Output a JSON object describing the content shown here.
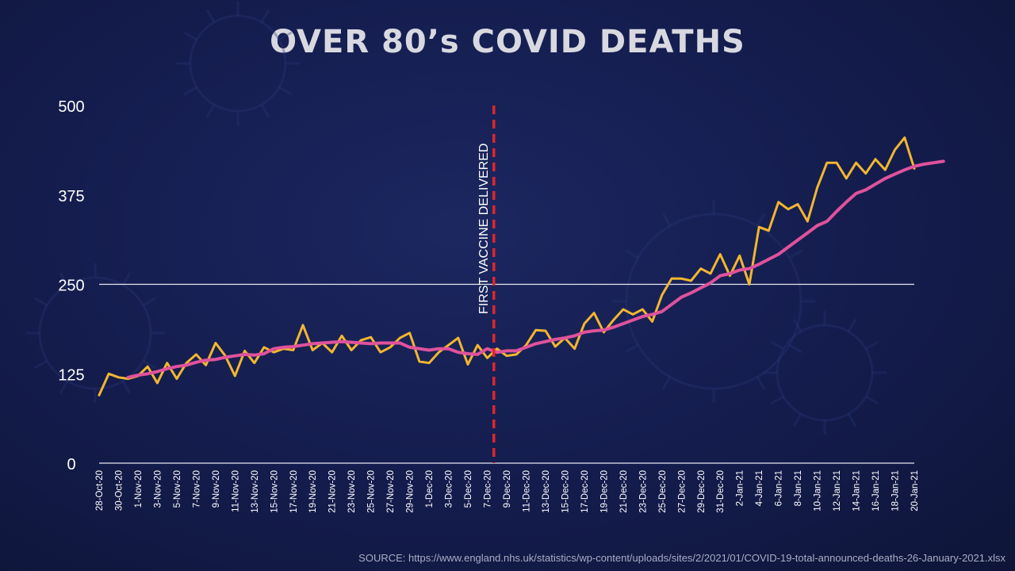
{
  "chart_data": {
    "type": "line",
    "title": "OVER 80’s COVID DEATHS",
    "source": "SOURCE: https://www.england.nhs.uk/statistics/wp-content/uploads/sites/2/2021/01/COVID-19-total-announced-deaths-26-January-2021.xlsx",
    "annotation": {
      "label": "FIRST VACCINE DELIVERED",
      "date": "8-Dec-20"
    },
    "ylim": [
      0,
      500
    ],
    "yticks": [
      0,
      125,
      250,
      375,
      500
    ],
    "grid_lines": [
      250
    ],
    "x_tick_labels": [
      "28-Oct-20",
      "30-Oct-20",
      "1-Nov-20",
      "3-Nov-20",
      "5-Nov-20",
      "7-Nov-20",
      "9-Nov-20",
      "11-Nov-20",
      "13-Nov-20",
      "15-Nov-20",
      "17-Nov-20",
      "19-Nov-20",
      "21-Nov-20",
      "23-Nov-20",
      "25-Nov-20",
      "27-Nov-20",
      "29-Nov-20",
      "1-Dec-20",
      "3-Dec-20",
      "5-Dec-20",
      "7-Dec-20",
      "9-Dec-20",
      "11-Dec-20",
      "13-Dec-20",
      "15-Dec-20",
      "17-Dec-20",
      "19-Dec-20",
      "21-Dec-20",
      "23-Dec-20",
      "25-Dec-20",
      "27-Dec-20",
      "29-Dec-20",
      "31-Dec-20",
      "2-Jan-21",
      "4-Jan-21",
      "6-Jan-21",
      "8-Jan-21",
      "10-Jan-21",
      "12-Jan-21",
      "14-Jan-21",
      "16-Jan-21",
      "18-Jan-21",
      "20-Jan-21"
    ],
    "start_date": "28-Oct-20",
    "series": [
      {
        "name": "",
        "color": "#f2b630",
        "values": [
          95,
          125,
          120,
          118,
          122,
          135,
          112,
          140,
          118,
          140,
          152,
          137,
          168,
          150,
          122,
          157,
          140,
          162,
          155,
          160,
          158,
          193,
          158,
          168,
          155,
          178,
          158,
          172,
          176,
          155,
          162,
          175,
          182,
          142,
          140,
          155,
          165,
          175,
          138,
          165,
          147,
          160,
          150,
          152,
          165,
          186,
          185,
          163,
          175,
          160,
          195,
          210,
          183,
          200,
          215,
          208,
          215,
          198,
          235,
          258,
          258,
          255,
          272,
          265,
          292,
          262,
          290,
          250,
          330,
          325,
          365,
          355,
          362,
          338,
          385,
          420,
          420,
          398,
          420,
          405,
          425,
          410,
          438,
          455,
          412
        ],
        "bold": false
      },
      {
        "name": "",
        "color": "#e0529c",
        "start_index": 3,
        "values": [
          120,
          123,
          125,
          128,
          132,
          135,
          137,
          141,
          144,
          145,
          148,
          150,
          152,
          151,
          153,
          160,
          162,
          163,
          165,
          167,
          168,
          169,
          170,
          169,
          168,
          167,
          168,
          168,
          168,
          162,
          160,
          158,
          160,
          160,
          155,
          153,
          152,
          160,
          155,
          157,
          157,
          162,
          167,
          170,
          173,
          175,
          178,
          183,
          185,
          186,
          190,
          195,
          200,
          205,
          208,
          212,
          222,
          232,
          238,
          245,
          252,
          262,
          265,
          270,
          272,
          278,
          285,
          292,
          302,
          312,
          322,
          332,
          338,
          352,
          365,
          377,
          382,
          390,
          398,
          404,
          410,
          415,
          418,
          420,
          422
        ]
      }
    ]
  }
}
